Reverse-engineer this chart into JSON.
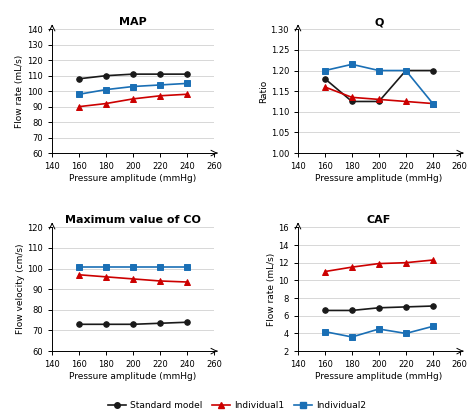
{
  "x": [
    160,
    180,
    200,
    220,
    240
  ],
  "map": {
    "standard": [
      108,
      110,
      111,
      111,
      111
    ],
    "individual1": [
      90,
      92,
      95,
      97,
      98
    ],
    "individual2": [
      98,
      101,
      103,
      104,
      105
    ]
  },
  "q": {
    "standard": [
      1.18,
      1.125,
      1.125,
      1.2,
      1.2
    ],
    "individual1": [
      1.16,
      1.135,
      1.13,
      1.125,
      1.12
    ],
    "individual2": [
      1.2,
      1.215,
      1.2,
      1.2,
      1.12
    ]
  },
  "co": {
    "standard": [
      73,
      73,
      73,
      73.5,
      74
    ],
    "individual1": [
      97,
      96,
      95,
      94,
      93.5
    ],
    "individual2": [
      101,
      101,
      101,
      101,
      101
    ]
  },
  "caf": {
    "standard": [
      6.6,
      6.6,
      6.9,
      7.0,
      7.1
    ],
    "individual1": [
      11.0,
      11.5,
      11.9,
      12.0,
      12.3
    ],
    "individual2": [
      4.2,
      3.6,
      4.5,
      4.0,
      4.8
    ]
  },
  "colors": {
    "standard": "#1a1a1a",
    "individual1": "#cc0000",
    "individual2": "#1a6fb5"
  },
  "marker": {
    "standard": "o",
    "individual1": "^",
    "individual2": "s"
  },
  "marker_size": 4,
  "line_width": 1.2,
  "titles": [
    "MAP",
    "Q",
    "Maximum value of CO",
    "CAF"
  ],
  "ylabels": [
    "Flow rate (mL/s)",
    "Ratio",
    "Flow velocity (cm/s)",
    "Flow rate (mL/s)"
  ],
  "xlabel": "Pressure amplitude (mmHg)",
  "xlim": [
    140,
    260
  ],
  "xticks": [
    140,
    160,
    180,
    200,
    220,
    240,
    260
  ],
  "map_ylim": [
    60,
    140
  ],
  "map_yticks": [
    60,
    70,
    80,
    90,
    100,
    110,
    120,
    130,
    140
  ],
  "q_ylim": [
    1.0,
    1.3
  ],
  "q_yticks": [
    1.0,
    1.05,
    1.1,
    1.15,
    1.2,
    1.25,
    1.3
  ],
  "co_ylim": [
    60,
    120
  ],
  "co_yticks": [
    60,
    70,
    80,
    90,
    100,
    110,
    120
  ],
  "caf_ylim": [
    2,
    16
  ],
  "caf_yticks": [
    2,
    4,
    6,
    8,
    10,
    12,
    14,
    16
  ],
  "legend_labels": [
    "Standard model",
    "Individual1",
    "Individual2"
  ],
  "title_fontsize": 8,
  "label_fontsize": 6.5,
  "tick_fontsize": 6,
  "bg_color": "#f0f0f0"
}
